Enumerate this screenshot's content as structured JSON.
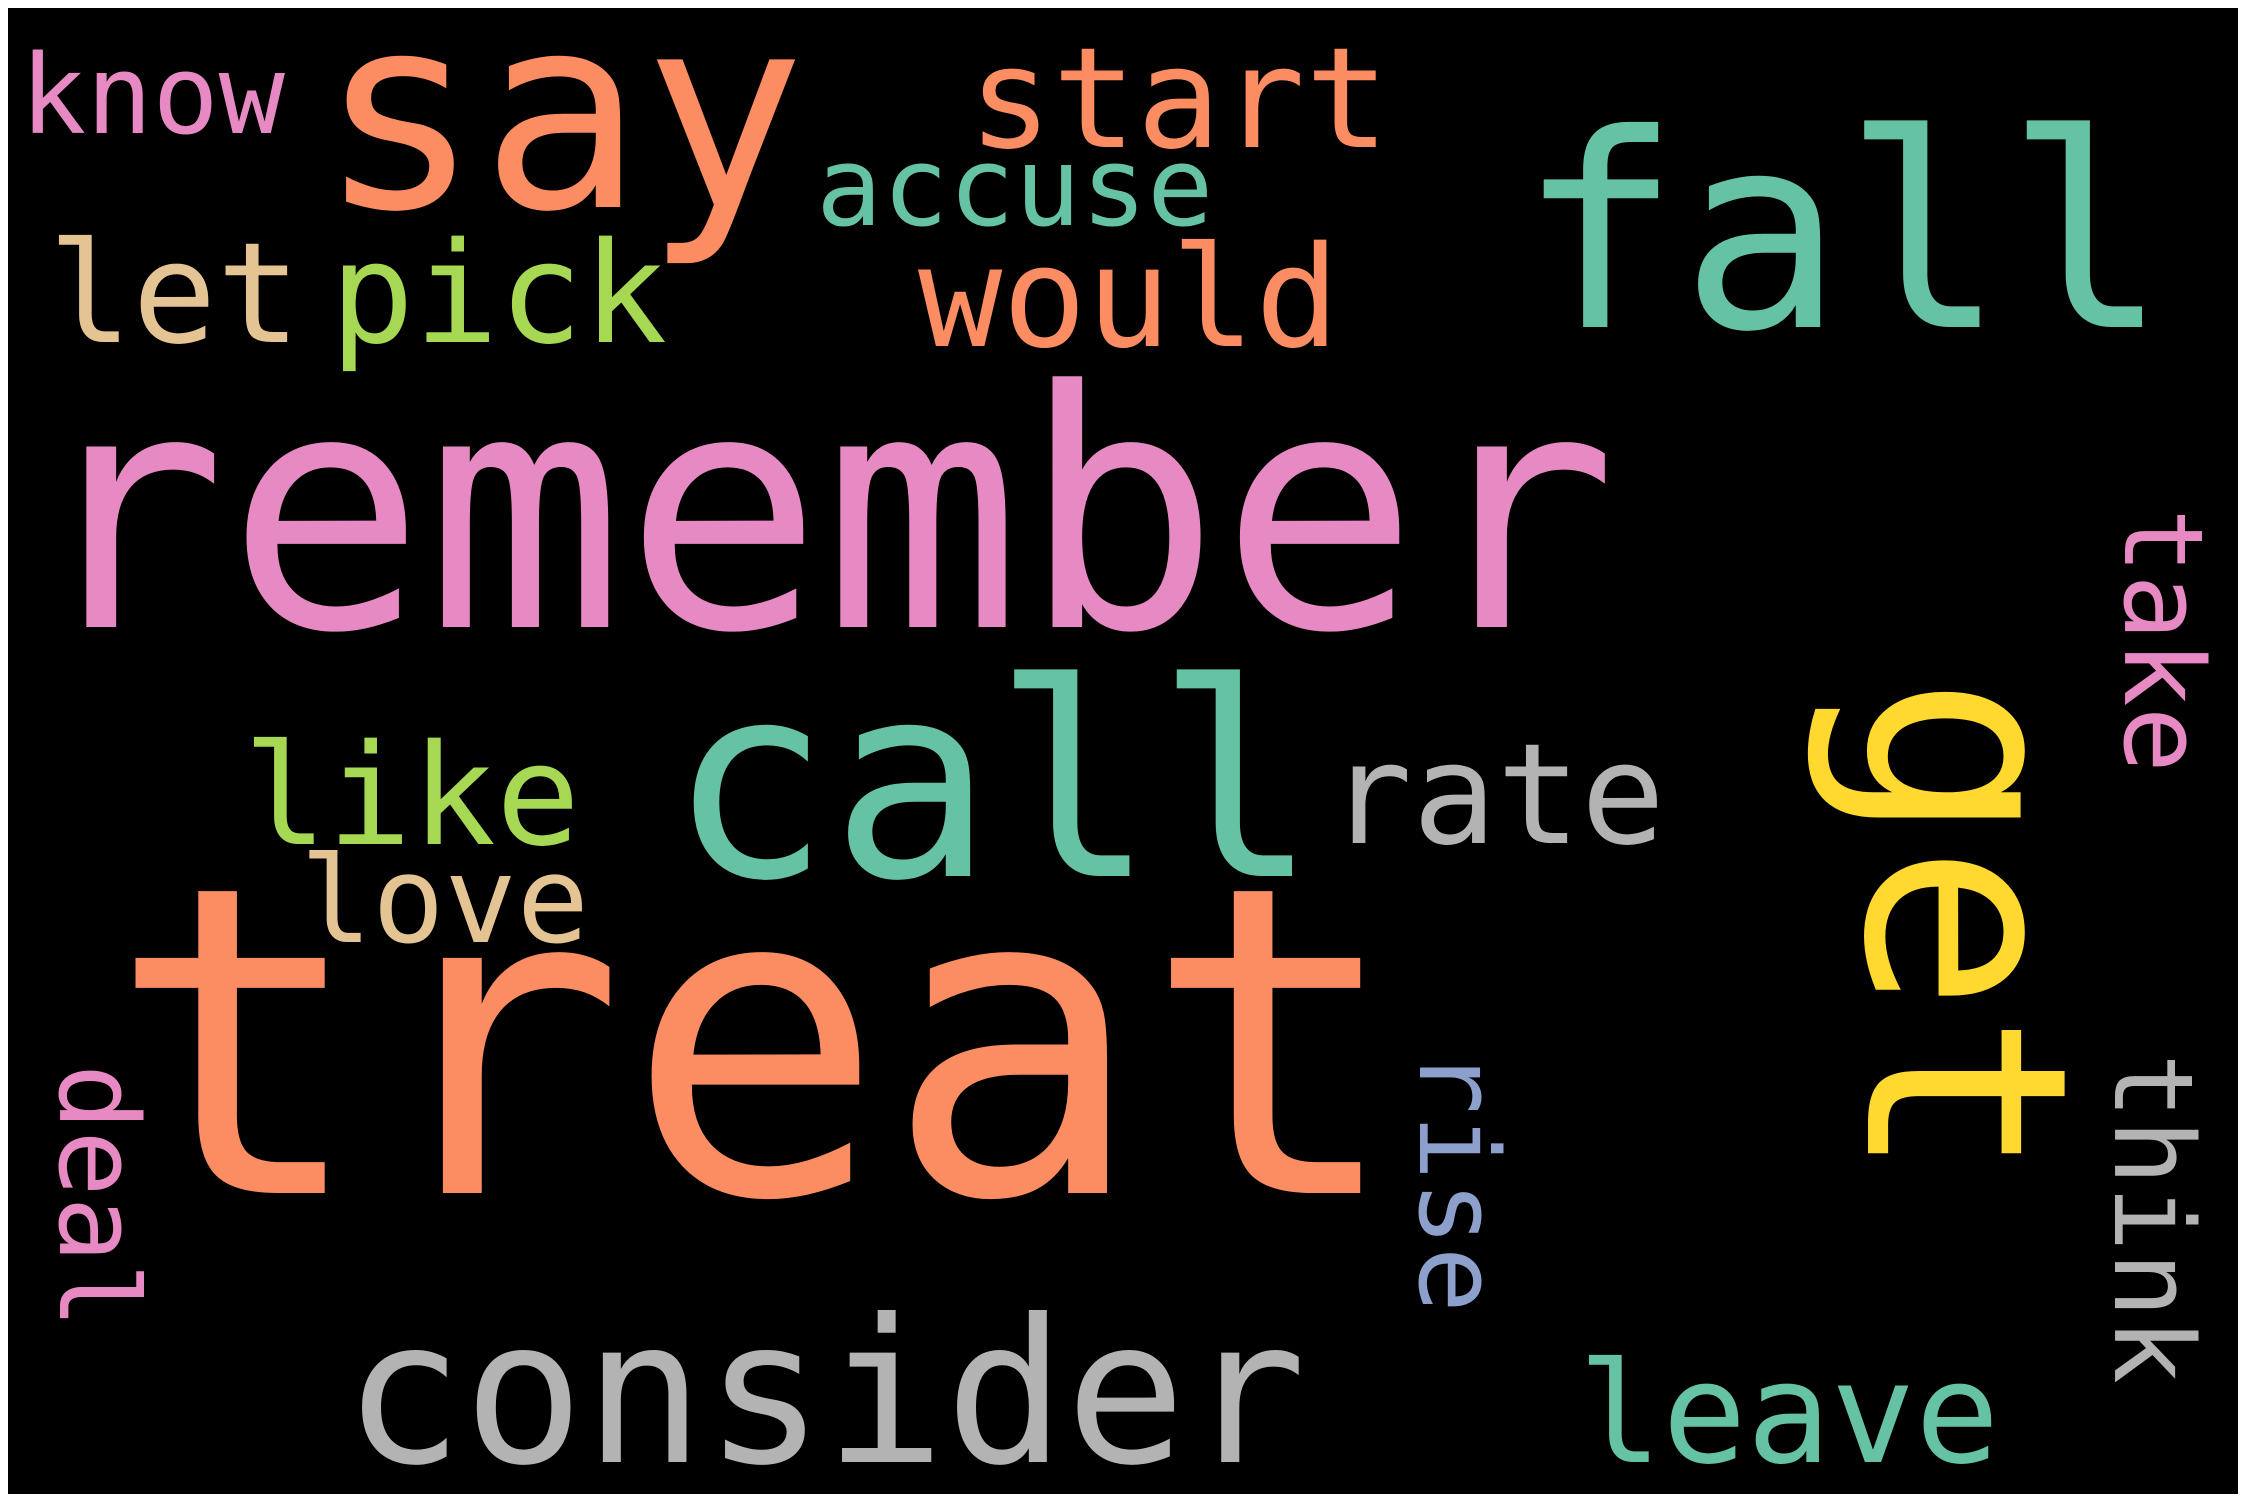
{
  "words": [
    {
      "id": "remember",
      "text": "remember",
      "color": "#e78ac3",
      "orientation": "horizontal"
    },
    {
      "id": "treat",
      "text": "treat",
      "color": "#fc8d62",
      "orientation": "horizontal"
    },
    {
      "id": "say",
      "text": "say",
      "color": "#fc8d62",
      "orientation": "horizontal"
    },
    {
      "id": "fall",
      "text": "fall",
      "color": "#66c2a5",
      "orientation": "horizontal"
    },
    {
      "id": "call",
      "text": "call",
      "color": "#66c2a5",
      "orientation": "horizontal"
    },
    {
      "id": "get",
      "text": "get",
      "color": "#ffd92f",
      "orientation": "vertical"
    },
    {
      "id": "consider",
      "text": "consider",
      "color": "#b3b3b3",
      "orientation": "horizontal"
    },
    {
      "id": "start",
      "text": "start",
      "color": "#fc8d62",
      "orientation": "horizontal"
    },
    {
      "id": "would",
      "text": "would",
      "color": "#fc8d62",
      "orientation": "horizontal"
    },
    {
      "id": "know",
      "text": "know",
      "color": "#e78ac3",
      "orientation": "horizontal"
    },
    {
      "id": "accuse",
      "text": "accuse",
      "color": "#66c2a5",
      "orientation": "horizontal"
    },
    {
      "id": "let",
      "text": "let",
      "color": "#e5c494",
      "orientation": "horizontal"
    },
    {
      "id": "pick",
      "text": "pick",
      "color": "#a6d854",
      "orientation": "horizontal"
    },
    {
      "id": "like",
      "text": "like",
      "color": "#a6d854",
      "orientation": "horizontal"
    },
    {
      "id": "love",
      "text": "love",
      "color": "#e5c494",
      "orientation": "horizontal"
    },
    {
      "id": "rate",
      "text": "rate",
      "color": "#b3b3b3",
      "orientation": "horizontal"
    },
    {
      "id": "take",
      "text": "take",
      "color": "#e78ac3",
      "orientation": "vertical"
    },
    {
      "id": "rise",
      "text": "rise",
      "color": "#8da0cb",
      "orientation": "vertical"
    },
    {
      "id": "think",
      "text": "think",
      "color": "#b3b3b3",
      "orientation": "vertical"
    },
    {
      "id": "deal",
      "text": "deal",
      "color": "#e78ac3",
      "orientation": "vertical"
    },
    {
      "id": "leave",
      "text": "leave",
      "color": "#66c2a5",
      "orientation": "horizontal"
    }
  ]
}
